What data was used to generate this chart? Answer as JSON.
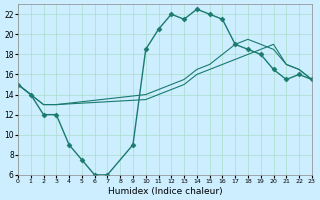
{
  "xlabel": "Humidex (Indice chaleur)",
  "ylabel": "",
  "bg_color": "#cceeff",
  "grid_color": "#aaddcc",
  "line_color": "#1a7a6e",
  "xlim": [
    0,
    23
  ],
  "ylim": [
    6,
    23
  ],
  "xticks": [
    0,
    1,
    2,
    3,
    4,
    5,
    6,
    7,
    8,
    9,
    10,
    11,
    12,
    13,
    14,
    15,
    16,
    17,
    18,
    19,
    20,
    21,
    22,
    23
  ],
  "yticks": [
    6,
    8,
    10,
    12,
    14,
    16,
    18,
    20,
    22
  ],
  "series": [
    {
      "x": [
        0,
        1,
        2,
        3,
        4,
        5,
        6,
        7,
        9,
        10,
        11,
        12,
        13,
        14,
        15,
        16,
        17,
        18,
        19,
        20,
        21,
        22,
        23
      ],
      "y": [
        15,
        14,
        12,
        12,
        9,
        7.5,
        6,
        6,
        9,
        18.5,
        20.5,
        22,
        21.5,
        22.5,
        22,
        21.5,
        19,
        18.5,
        18,
        16.5,
        15.5,
        16,
        15.5
      ],
      "marker": "D",
      "ms": 2.5,
      "lw": 1.0
    },
    {
      "x": [
        0,
        1,
        2,
        3,
        10,
        11,
        12,
        13,
        14,
        15,
        16,
        17,
        18,
        19,
        20,
        21,
        22,
        23
      ],
      "y": [
        15,
        14,
        13,
        13,
        13.5,
        14,
        14.5,
        15,
        16,
        16.5,
        17,
        17.5,
        18,
        18.5,
        19,
        17,
        16.5,
        15.5
      ],
      "marker": "",
      "ms": 0,
      "lw": 0.8
    },
    {
      "x": [
        0,
        1,
        2,
        3,
        10,
        11,
        12,
        13,
        14,
        15,
        16,
        17,
        18,
        19,
        20,
        21,
        22,
        23
      ],
      "y": [
        15,
        14,
        13,
        13,
        14,
        14.5,
        15,
        15.5,
        16.5,
        17,
        18,
        19,
        19.5,
        19,
        18.5,
        17,
        16.5,
        15.5
      ],
      "marker": "",
      "ms": 0,
      "lw": 0.8
    }
  ]
}
